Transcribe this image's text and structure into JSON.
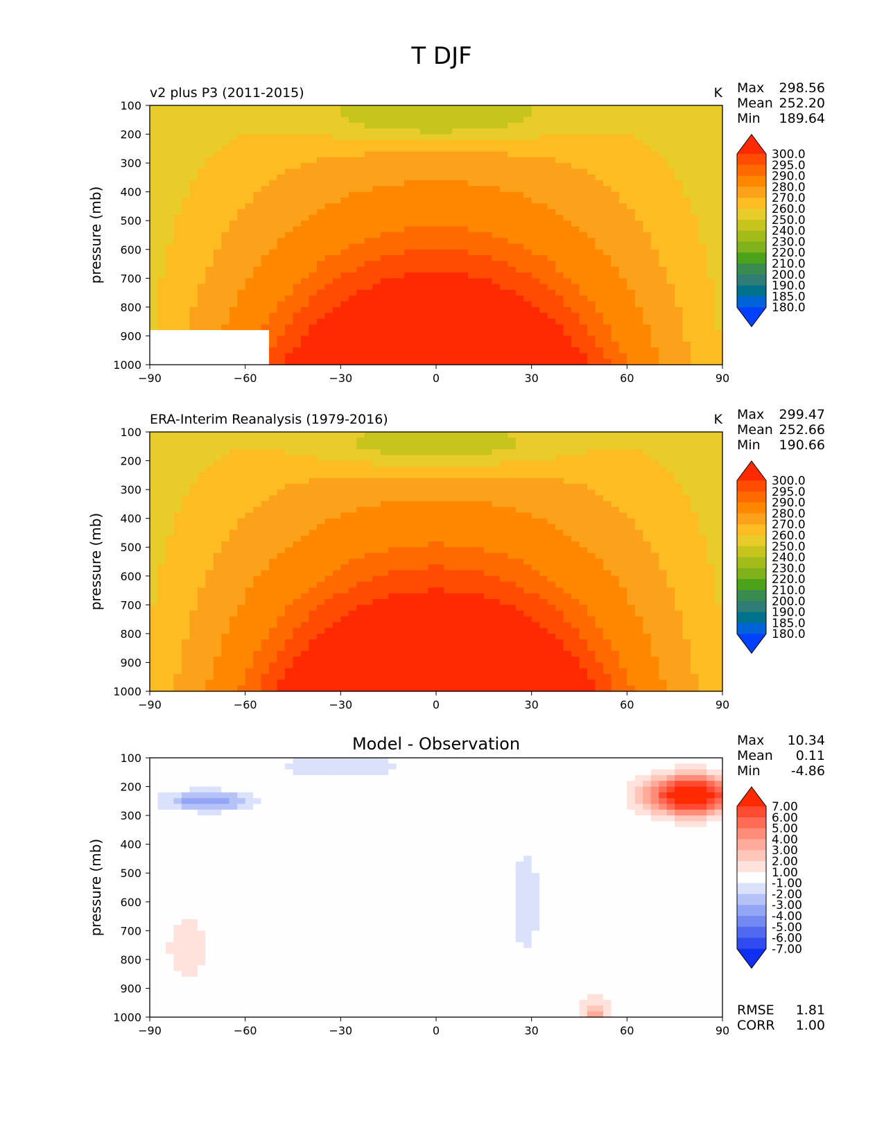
{
  "figure_title": "T DJF",
  "chart_data": [
    {
      "type": "heatmap",
      "title": "v2 plus P3 (2011-2015)",
      "units": "K",
      "stats": {
        "max_label": "Max",
        "max": "298.56",
        "mean_label": "Mean",
        "mean": "252.20",
        "min_label": "Min",
        "min": "189.64"
      },
      "ylabel": "pressure (mb)",
      "xlim": [
        -90,
        90
      ],
      "ylim": [
        1000,
        100
      ],
      "xticks": [
        "−90",
        "−60",
        "−30",
        "0",
        "30",
        "60",
        "90"
      ],
      "yticks": [
        "100",
        "200",
        "300",
        "400",
        "500",
        "600",
        "700",
        "800",
        "900",
        "1000"
      ],
      "colorbar": {
        "levels": [
          "300.0",
          "295.0",
          "290.0",
          "280.0",
          "270.0",
          "260.0",
          "250.0",
          "240.0",
          "230.0",
          "220.0",
          "210.0",
          "200.0",
          "190.0",
          "185.0",
          "180.0"
        ],
        "colors": [
          "#ff2a00",
          "#ff4c00",
          "#ff6a00",
          "#ff8800",
          "#fca21a",
          "#fcbc22",
          "#e8cc2a",
          "#c6c41d",
          "#a3bc1a",
          "#7fb21a",
          "#4ca21a",
          "#3a8c4e",
          "#2f7d74",
          "#00728c",
          "#0063d8",
          "#0040ff"
        ]
      },
      "field": {
        "amplitude": 50,
        "offset": 258,
        "surface_cutoff": true
      }
    },
    {
      "type": "heatmap",
      "title": "ERA-Interim Reanalysis (1979-2016)",
      "units": "K",
      "stats": {
        "max_label": "Max",
        "max": "299.47",
        "mean_label": "Mean",
        "mean": "252.66",
        "min_label": "Min",
        "min": "190.66"
      },
      "ylabel": "pressure (mb)",
      "xlim": [
        -90,
        90
      ],
      "ylim": [
        1000,
        100
      ],
      "xticks": [
        "−90",
        "−60",
        "−30",
        "0",
        "30",
        "60",
        "90"
      ],
      "yticks": [
        "100",
        "200",
        "300",
        "400",
        "500",
        "600",
        "700",
        "800",
        "900",
        "1000"
      ],
      "colorbar": {
        "levels": [
          "300.0",
          "295.0",
          "290.0",
          "280.0",
          "270.0",
          "260.0",
          "250.0",
          "240.0",
          "230.0",
          "220.0",
          "210.0",
          "200.0",
          "190.0",
          "185.0",
          "180.0"
        ],
        "colors": [
          "#ff2a00",
          "#ff4c00",
          "#ff6a00",
          "#ff8800",
          "#fca21a",
          "#fcbc22",
          "#e8cc2a",
          "#c6c41d",
          "#a3bc1a",
          "#7fb21a",
          "#4ca21a",
          "#3a8c4e",
          "#2f7d74",
          "#00728c",
          "#0063d8",
          "#0040ff"
        ]
      },
      "field": {
        "amplitude": 50,
        "offset": 260,
        "surface_cutoff": false
      }
    },
    {
      "type": "heatmap",
      "title": "Model - Observation",
      "units": "",
      "stats": {
        "max_label": "Max",
        "max": "10.34",
        "mean_label": "Mean",
        "mean": "0.11",
        "min_label": "Min",
        "min": "-4.86"
      },
      "extra_stats": {
        "rmse_label": "RMSE",
        "rmse": "1.81",
        "corr_label": "CORR",
        "corr": "1.00"
      },
      "ylabel": "pressure (mb)",
      "xlim": [
        -90,
        90
      ],
      "ylim": [
        1000,
        100
      ],
      "xticks": [
        "−90",
        "−60",
        "−30",
        "0",
        "30",
        "60",
        "90"
      ],
      "yticks": [
        "100",
        "200",
        "300",
        "400",
        "500",
        "600",
        "700",
        "800",
        "900",
        "1000"
      ],
      "colorbar": {
        "levels": [
          "7.00",
          "6.00",
          "5.00",
          "4.00",
          "3.00",
          "2.00",
          "1.00",
          "-1.00",
          "-2.00",
          "-3.00",
          "-4.00",
          "-5.00",
          "-6.00",
          "-7.00"
        ],
        "colors": [
          "#ff2a00",
          "#ff4a33",
          "#ff6b55",
          "#ff8c78",
          "#ffaa9a",
          "#ffc6ba",
          "#ffe2dc",
          "#fefefe",
          "#d9e1fb",
          "#b4c2f8",
          "#93a6f5",
          "#7388f2",
          "#4f6af0",
          "#2e4cf0",
          "#0f2ff2"
        ]
      },
      "field": {
        "difference": true
      }
    }
  ]
}
